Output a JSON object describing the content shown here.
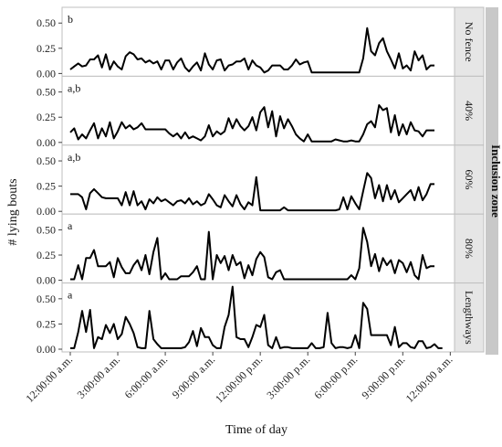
{
  "chart_data": {
    "type": "line",
    "ylabel": "# lying bouts",
    "xlabel": "Time of day",
    "strip_title": "Inclusion zone",
    "ylim": [
      0,
      0.62
    ],
    "yticks": [
      0.0,
      0.25,
      0.5
    ],
    "ytick_labels": [
      "0.00",
      "0.25",
      "0.50"
    ],
    "xlim": [
      0,
      95
    ],
    "x_tick_positions": [
      0,
      12,
      24,
      36,
      48,
      60,
      72,
      84,
      96
    ],
    "x_tick_labels": [
      "12:00:00 a.m.",
      "3:00:00 a.m.",
      "6:00:00 a.m.",
      "9:00:00 a.m.",
      "12:00:00 p.m.",
      "3:00:00 p.m.",
      "6:00:00 p.m.",
      "9:00:00 p.m.",
      "12:00:00 a.m."
    ],
    "x_unit": "15-minute interval index from midnight",
    "panels": [
      {
        "strip": "No fence",
        "letter": "b",
        "values": [
          0.04,
          0.07,
          0.1,
          0.07,
          0.08,
          0.14,
          0.14,
          0.18,
          0.06,
          0.19,
          0.04,
          0.12,
          0.07,
          0.04,
          0.17,
          0.21,
          0.19,
          0.14,
          0.15,
          0.11,
          0.13,
          0.1,
          0.12,
          0.04,
          0.13,
          0.13,
          0.04,
          0.11,
          0.15,
          0.06,
          0.02,
          0.07,
          0.11,
          0.03,
          0.2,
          0.09,
          0.04,
          0.13,
          0.14,
          0.03,
          0.08,
          0.09,
          0.12,
          0.12,
          0.15,
          0.04,
          0.13,
          0.08,
          0.06,
          0.01,
          0.03,
          0.08,
          0.08,
          0.08,
          0.04,
          0.04,
          0.08,
          0.14,
          0.09,
          0.11,
          0.12,
          0.01,
          0.01,
          0.01,
          0.01,
          0.01,
          0.01,
          0.01,
          0.01,
          0.01,
          0.01,
          0.01,
          0.01,
          0.01,
          0.15,
          0.45,
          0.22,
          0.18,
          0.3,
          0.35,
          0.22,
          0.14,
          0.05,
          0.2,
          0.05,
          0.08,
          0.03,
          0.22,
          0.13,
          0.18,
          0.04,
          0.08,
          0.08
        ]
      },
      {
        "strip": "40%",
        "letter": "a,b",
        "values": [
          0.1,
          0.14,
          0.03,
          0.08,
          0.04,
          0.12,
          0.19,
          0.04,
          0.14,
          0.06,
          0.2,
          0.04,
          0.11,
          0.2,
          0.14,
          0.17,
          0.13,
          0.15,
          0.19,
          0.13,
          0.13,
          0.13,
          0.13,
          0.13,
          0.13,
          0.09,
          0.06,
          0.09,
          0.04,
          0.1,
          0.04,
          0.06,
          0.04,
          0.02,
          0.06,
          0.17,
          0.06,
          0.11,
          0.08,
          0.11,
          0.24,
          0.14,
          0.23,
          0.16,
          0.12,
          0.16,
          0.25,
          0.12,
          0.3,
          0.35,
          0.15,
          0.31,
          0.06,
          0.26,
          0.14,
          0.23,
          0.16,
          0.08,
          0.04,
          0.01,
          0.08,
          0.01,
          0.01,
          0.01,
          0.01,
          0.01,
          0.01,
          0.03,
          0.02,
          0.01,
          0.01,
          0.02,
          0.01,
          0.01,
          0.08,
          0.18,
          0.21,
          0.15,
          0.37,
          0.32,
          0.34,
          0.1,
          0.27,
          0.07,
          0.18,
          0.08,
          0.2,
          0.12,
          0.11,
          0.06,
          0.12,
          0.12,
          0.12
        ]
      },
      {
        "strip": "60%",
        "letter": "a,b",
        "values": [
          0.17,
          0.17,
          0.17,
          0.14,
          0.02,
          0.18,
          0.22,
          0.18,
          0.14,
          0.13,
          0.13,
          0.13,
          0.13,
          0.06,
          0.19,
          0.06,
          0.2,
          0.06,
          0.1,
          0.02,
          0.12,
          0.08,
          0.14,
          0.1,
          0.12,
          0.09,
          0.06,
          0.1,
          0.11,
          0.08,
          0.13,
          0.07,
          0.1,
          0.06,
          0.08,
          0.17,
          0.12,
          0.06,
          0.04,
          0.16,
          0.1,
          0.05,
          0.16,
          0.07,
          0.02,
          0.09,
          0.06,
          0.34,
          0.01,
          0.01,
          0.01,
          0.01,
          0.01,
          0.01,
          0.04,
          0.01,
          0.01,
          0.01,
          0.01,
          0.01,
          0.01,
          0.01,
          0.01,
          0.01,
          0.01,
          0.01,
          0.01,
          0.01,
          0.02,
          0.14,
          0.02,
          0.15,
          0.08,
          0.02,
          0.2,
          0.38,
          0.33,
          0.13,
          0.26,
          0.1,
          0.26,
          0.12,
          0.21,
          0.09,
          0.13,
          0.17,
          0.21,
          0.11,
          0.24,
          0.11,
          0.17,
          0.27,
          0.27
        ]
      },
      {
        "strip": "80%",
        "letter": "a",
        "values": [
          0.01,
          0.01,
          0.15,
          0.01,
          0.22,
          0.22,
          0.3,
          0.14,
          0.14,
          0.14,
          0.18,
          0.03,
          0.22,
          0.13,
          0.07,
          0.07,
          0.15,
          0.2,
          0.1,
          0.25,
          0.06,
          0.28,
          0.42,
          0.01,
          0.07,
          0.01,
          0.01,
          0.01,
          0.04,
          0.04,
          0.04,
          0.08,
          0.14,
          0.01,
          0.01,
          0.48,
          0.01,
          0.25,
          0.17,
          0.24,
          0.1,
          0.25,
          0.15,
          0.18,
          0.02,
          0.15,
          0.05,
          0.21,
          0.28,
          0.23,
          0.03,
          0.01,
          0.08,
          0.1,
          0.01,
          0.01,
          0.01,
          0.01,
          0.01,
          0.01,
          0.01,
          0.01,
          0.01,
          0.01,
          0.01,
          0.01,
          0.01,
          0.01,
          0.01,
          0.01,
          0.01,
          0.05,
          0.01,
          0.12,
          0.52,
          0.38,
          0.14,
          0.26,
          0.09,
          0.22,
          0.15,
          0.2,
          0.07,
          0.2,
          0.17,
          0.08,
          0.18,
          0.05,
          0.01,
          0.25,
          0.12,
          0.14,
          0.14
        ]
      },
      {
        "strip": "Lengthways",
        "letter": "a",
        "values": [
          0.01,
          0.01,
          0.17,
          0.38,
          0.17,
          0.39,
          0.01,
          0.12,
          0.1,
          0.24,
          0.16,
          0.25,
          0.1,
          0.15,
          0.32,
          0.25,
          0.16,
          0.02,
          0.01,
          0.01,
          0.38,
          0.1,
          0.05,
          0.01,
          0.01,
          0.01,
          0.01,
          0.01,
          0.01,
          0.02,
          0.07,
          0.18,
          0.03,
          0.21,
          0.12,
          0.12,
          0.04,
          0.01,
          0.01,
          0.22,
          0.34,
          0.62,
          0.12,
          0.1,
          0.1,
          0.02,
          0.12,
          0.24,
          0.22,
          0.34,
          0.04,
          0.01,
          0.12,
          0.01,
          0.02,
          0.02,
          0.01,
          0.01,
          0.01,
          0.01,
          0.01,
          0.06,
          0.01,
          0.01,
          0.02,
          0.36,
          0.06,
          0.01,
          0.02,
          0.02,
          0.01,
          0.02,
          0.14,
          0.01,
          0.46,
          0.4,
          0.14,
          0.14,
          0.14,
          0.14,
          0.14,
          0.04,
          0.22,
          0.02,
          0.06,
          0.06,
          0.02,
          0.01,
          0.08,
          0.08,
          0.01,
          0.02,
          0.05,
          0.01,
          0.01
        ]
      }
    ]
  }
}
